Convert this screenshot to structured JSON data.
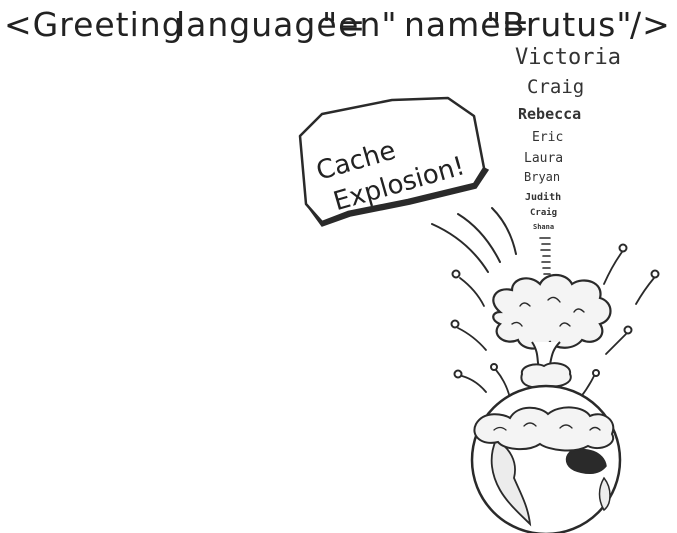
{
  "code": {
    "tag_open": "<Greeting",
    "attr1_name": "language=",
    "attr1_value": "\"en\"",
    "attr2_name": "name=",
    "attr2_value": "\"Brutus\"",
    "tag_close": "/>"
  },
  "bubble": {
    "line1": "Cache",
    "line2": "Explosion!"
  },
  "names": [
    "Victoria",
    "Craig",
    "Rebecca",
    "Eric",
    "Laura",
    "Bryan",
    "Judith",
    "Craig",
    "Shana"
  ]
}
